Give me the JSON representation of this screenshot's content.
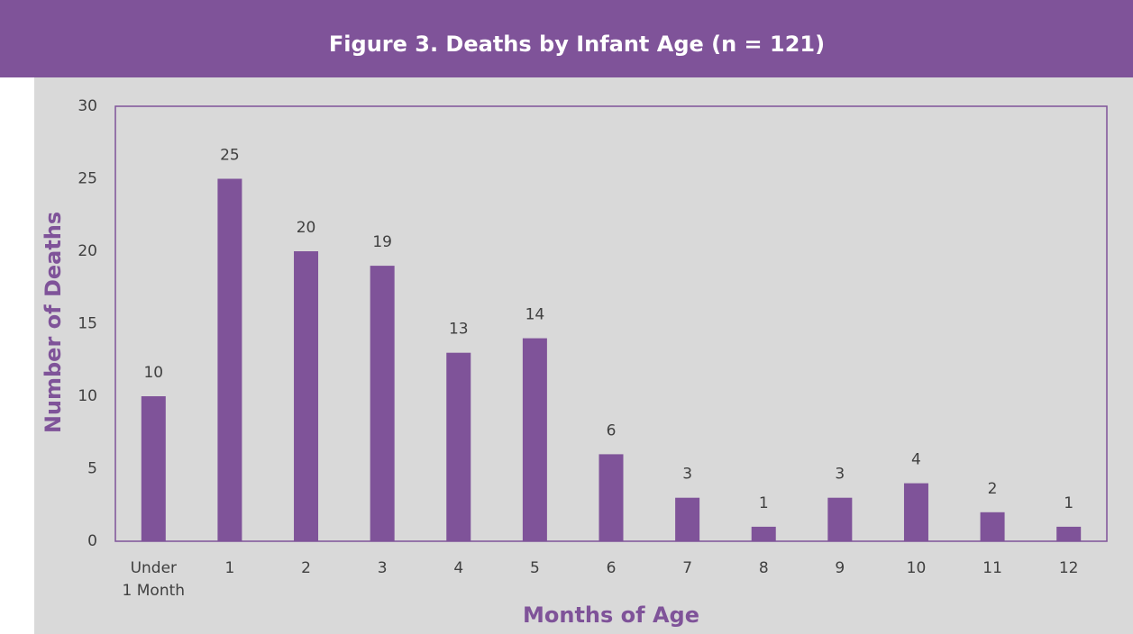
{
  "chart_data": {
    "type": "bar",
    "title": "Figure 3.  Deaths by Infant Age (n = 121)",
    "x_label": "Months of Age",
    "y_label": "Number of Deaths",
    "categories": [
      "Under 1 Month",
      "1",
      "2",
      "3",
      "4",
      "5",
      "6",
      "7",
      "8",
      "9",
      "10",
      "11",
      "12"
    ],
    "values": [
      10,
      25,
      20,
      19,
      13,
      14,
      6,
      3,
      1,
      3,
      4,
      2,
      1
    ],
    "color": "#7f5399",
    "ylim": [
      0,
      30
    ],
    "yticks": [
      0,
      5,
      10,
      15,
      20,
      25,
      30
    ],
    "grid": false
  }
}
